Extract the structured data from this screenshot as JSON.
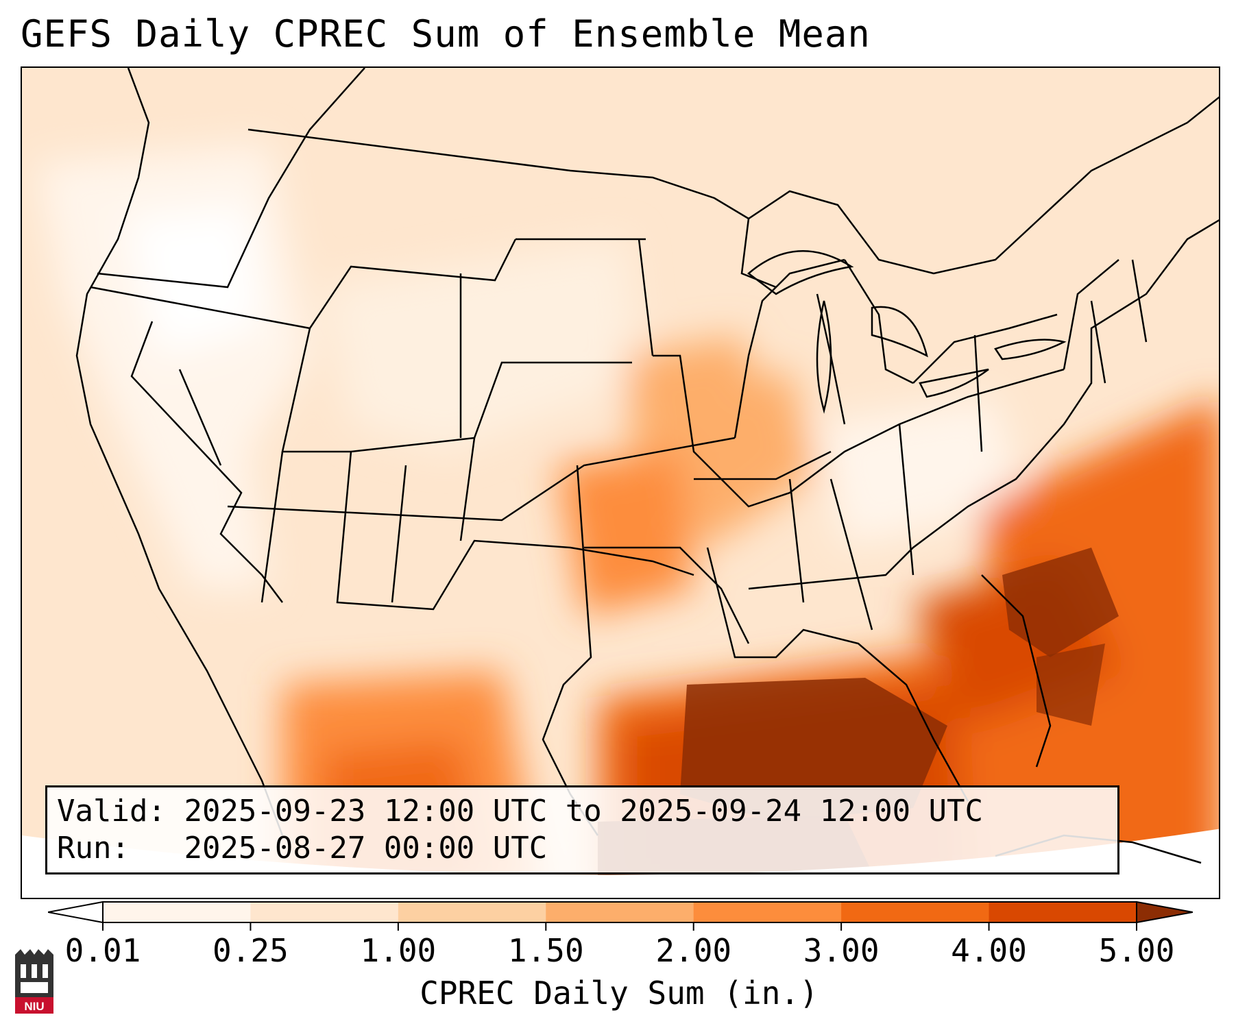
{
  "title": "GEFS Daily CPREC Sum of Ensemble Mean",
  "info": {
    "valid_label": "Valid:",
    "valid_value": "2025-09-23 12:00 UTC to 2025-09-24 12:00 UTC",
    "run_label": "Run:",
    "run_value": "2025-08-27 00:00 UTC"
  },
  "colorbar": {
    "label": "CPREC Daily Sum (in.)",
    "ticks": [
      "0.01",
      "0.25",
      "1.00",
      "1.50",
      "2.00",
      "3.00",
      "4.00",
      "5.00"
    ],
    "colors": [
      "#fff5eb",
      "#fee6ce",
      "#fdd0a2",
      "#fdae6b",
      "#fd8d3c",
      "#f16913",
      "#d94801",
      "#8c2d04"
    ]
  },
  "logo": {
    "text": "NIU",
    "color": "#c8102e"
  }
}
